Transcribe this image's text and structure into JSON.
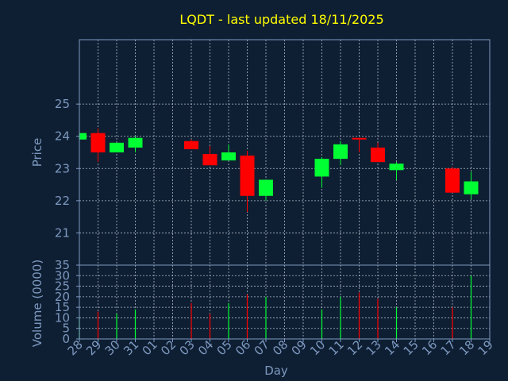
{
  "chart_data": {
    "type": "candlestick",
    "title": "LQDT - last updated 18/11/2025",
    "xlabel": "Day",
    "ylabel_price": "Price",
    "ylabel_volume": "Volume (0000)",
    "price_ticks": [
      21,
      22,
      23,
      24,
      25
    ],
    "price_ylim": [
      20.0,
      27.0
    ],
    "volume_ticks": [
      0,
      5,
      10,
      15,
      20,
      25,
      30,
      35
    ],
    "volume_ylim": [
      0,
      35
    ],
    "grid": true,
    "colors": {
      "up": "#00ff33",
      "down": "#ff0000",
      "title": "#ffff00",
      "axis": "#7d99c0",
      "background": "#0f1f33"
    },
    "day_labels": [
      "28",
      "29",
      "30",
      "31",
      "01",
      "02",
      "03",
      "04",
      "05",
      "06",
      "07",
      "08",
      "09",
      "10",
      "11",
      "12",
      "13",
      "14",
      "15",
      "16",
      "17",
      "18",
      "19"
    ],
    "candles": [
      {
        "day": "28",
        "open": 23.9,
        "high": 24.1,
        "low": 23.9,
        "close": 24.1,
        "volume": 10
      },
      {
        "day": "29",
        "open": 24.1,
        "high": 24.25,
        "low": 23.2,
        "close": 23.5,
        "volume": 13
      },
      {
        "day": "30",
        "open": 23.5,
        "high": 23.8,
        "low": 23.5,
        "close": 23.8,
        "volume": 12
      },
      {
        "day": "31",
        "open": 23.65,
        "high": 24.0,
        "low": 23.5,
        "close": 23.95,
        "volume": 14
      },
      {
        "day": "03",
        "open": 23.85,
        "high": 23.9,
        "low": 23.6,
        "close": 23.6,
        "volume": 17
      },
      {
        "day": "04",
        "open": 23.45,
        "high": 23.7,
        "low": 23.1,
        "close": 23.1,
        "volume": 12
      },
      {
        "day": "05",
        "open": 23.25,
        "high": 23.75,
        "low": 23.25,
        "close": 23.5,
        "volume": 17
      },
      {
        "day": "06",
        "open": 23.4,
        "high": 23.55,
        "low": 21.65,
        "close": 22.15,
        "volume": 21
      },
      {
        "day": "07",
        "open": 22.15,
        "high": 22.65,
        "low": 22.0,
        "close": 22.65,
        "volume": 20
      },
      {
        "day": "10",
        "open": 22.75,
        "high": 23.35,
        "low": 22.4,
        "close": 23.3,
        "volume": 14
      },
      {
        "day": "11",
        "open": 23.3,
        "high": 23.85,
        "low": 23.1,
        "close": 23.75,
        "volume": 20
      },
      {
        "day": "12",
        "open": 23.95,
        "high": 23.95,
        "low": 23.5,
        "close": 23.9,
        "volume": 22
      },
      {
        "day": "13",
        "open": 23.65,
        "high": 23.8,
        "low": 23.2,
        "close": 23.2,
        "volume": 19
      },
      {
        "day": "14",
        "open": 22.95,
        "high": 23.2,
        "low": 22.65,
        "close": 23.15,
        "volume": 15
      },
      {
        "day": "17",
        "open": 23.0,
        "high": 23.05,
        "low": 22.25,
        "close": 22.25,
        "volume": 15
      },
      {
        "day": "18",
        "open": 22.2,
        "high": 22.9,
        "low": 22.05,
        "close": 22.6,
        "volume": 30
      }
    ]
  }
}
